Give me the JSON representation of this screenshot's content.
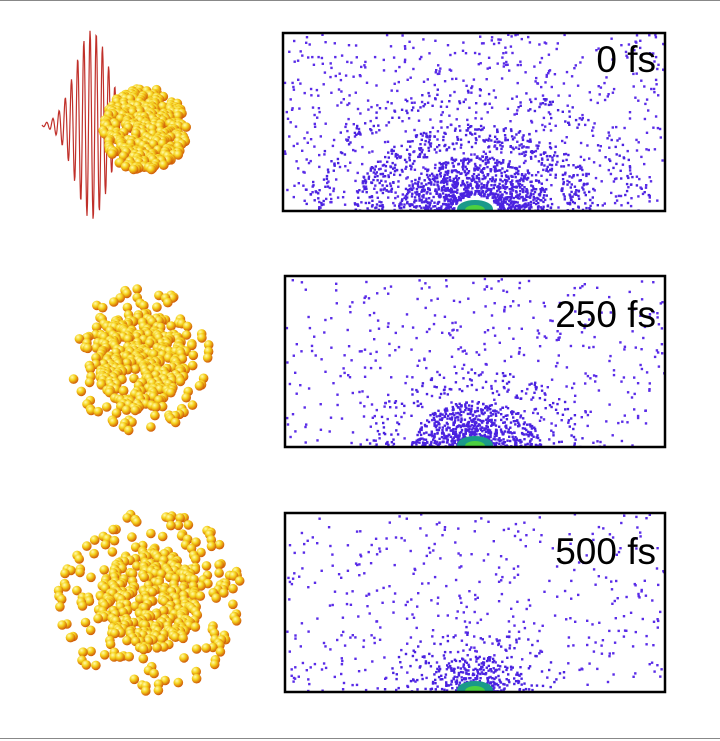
{
  "panels": [
    {
      "time_label": "0 fs"
    },
    {
      "time_label": "250 fs"
    },
    {
      "time_label": "500 fs"
    }
  ]
}
